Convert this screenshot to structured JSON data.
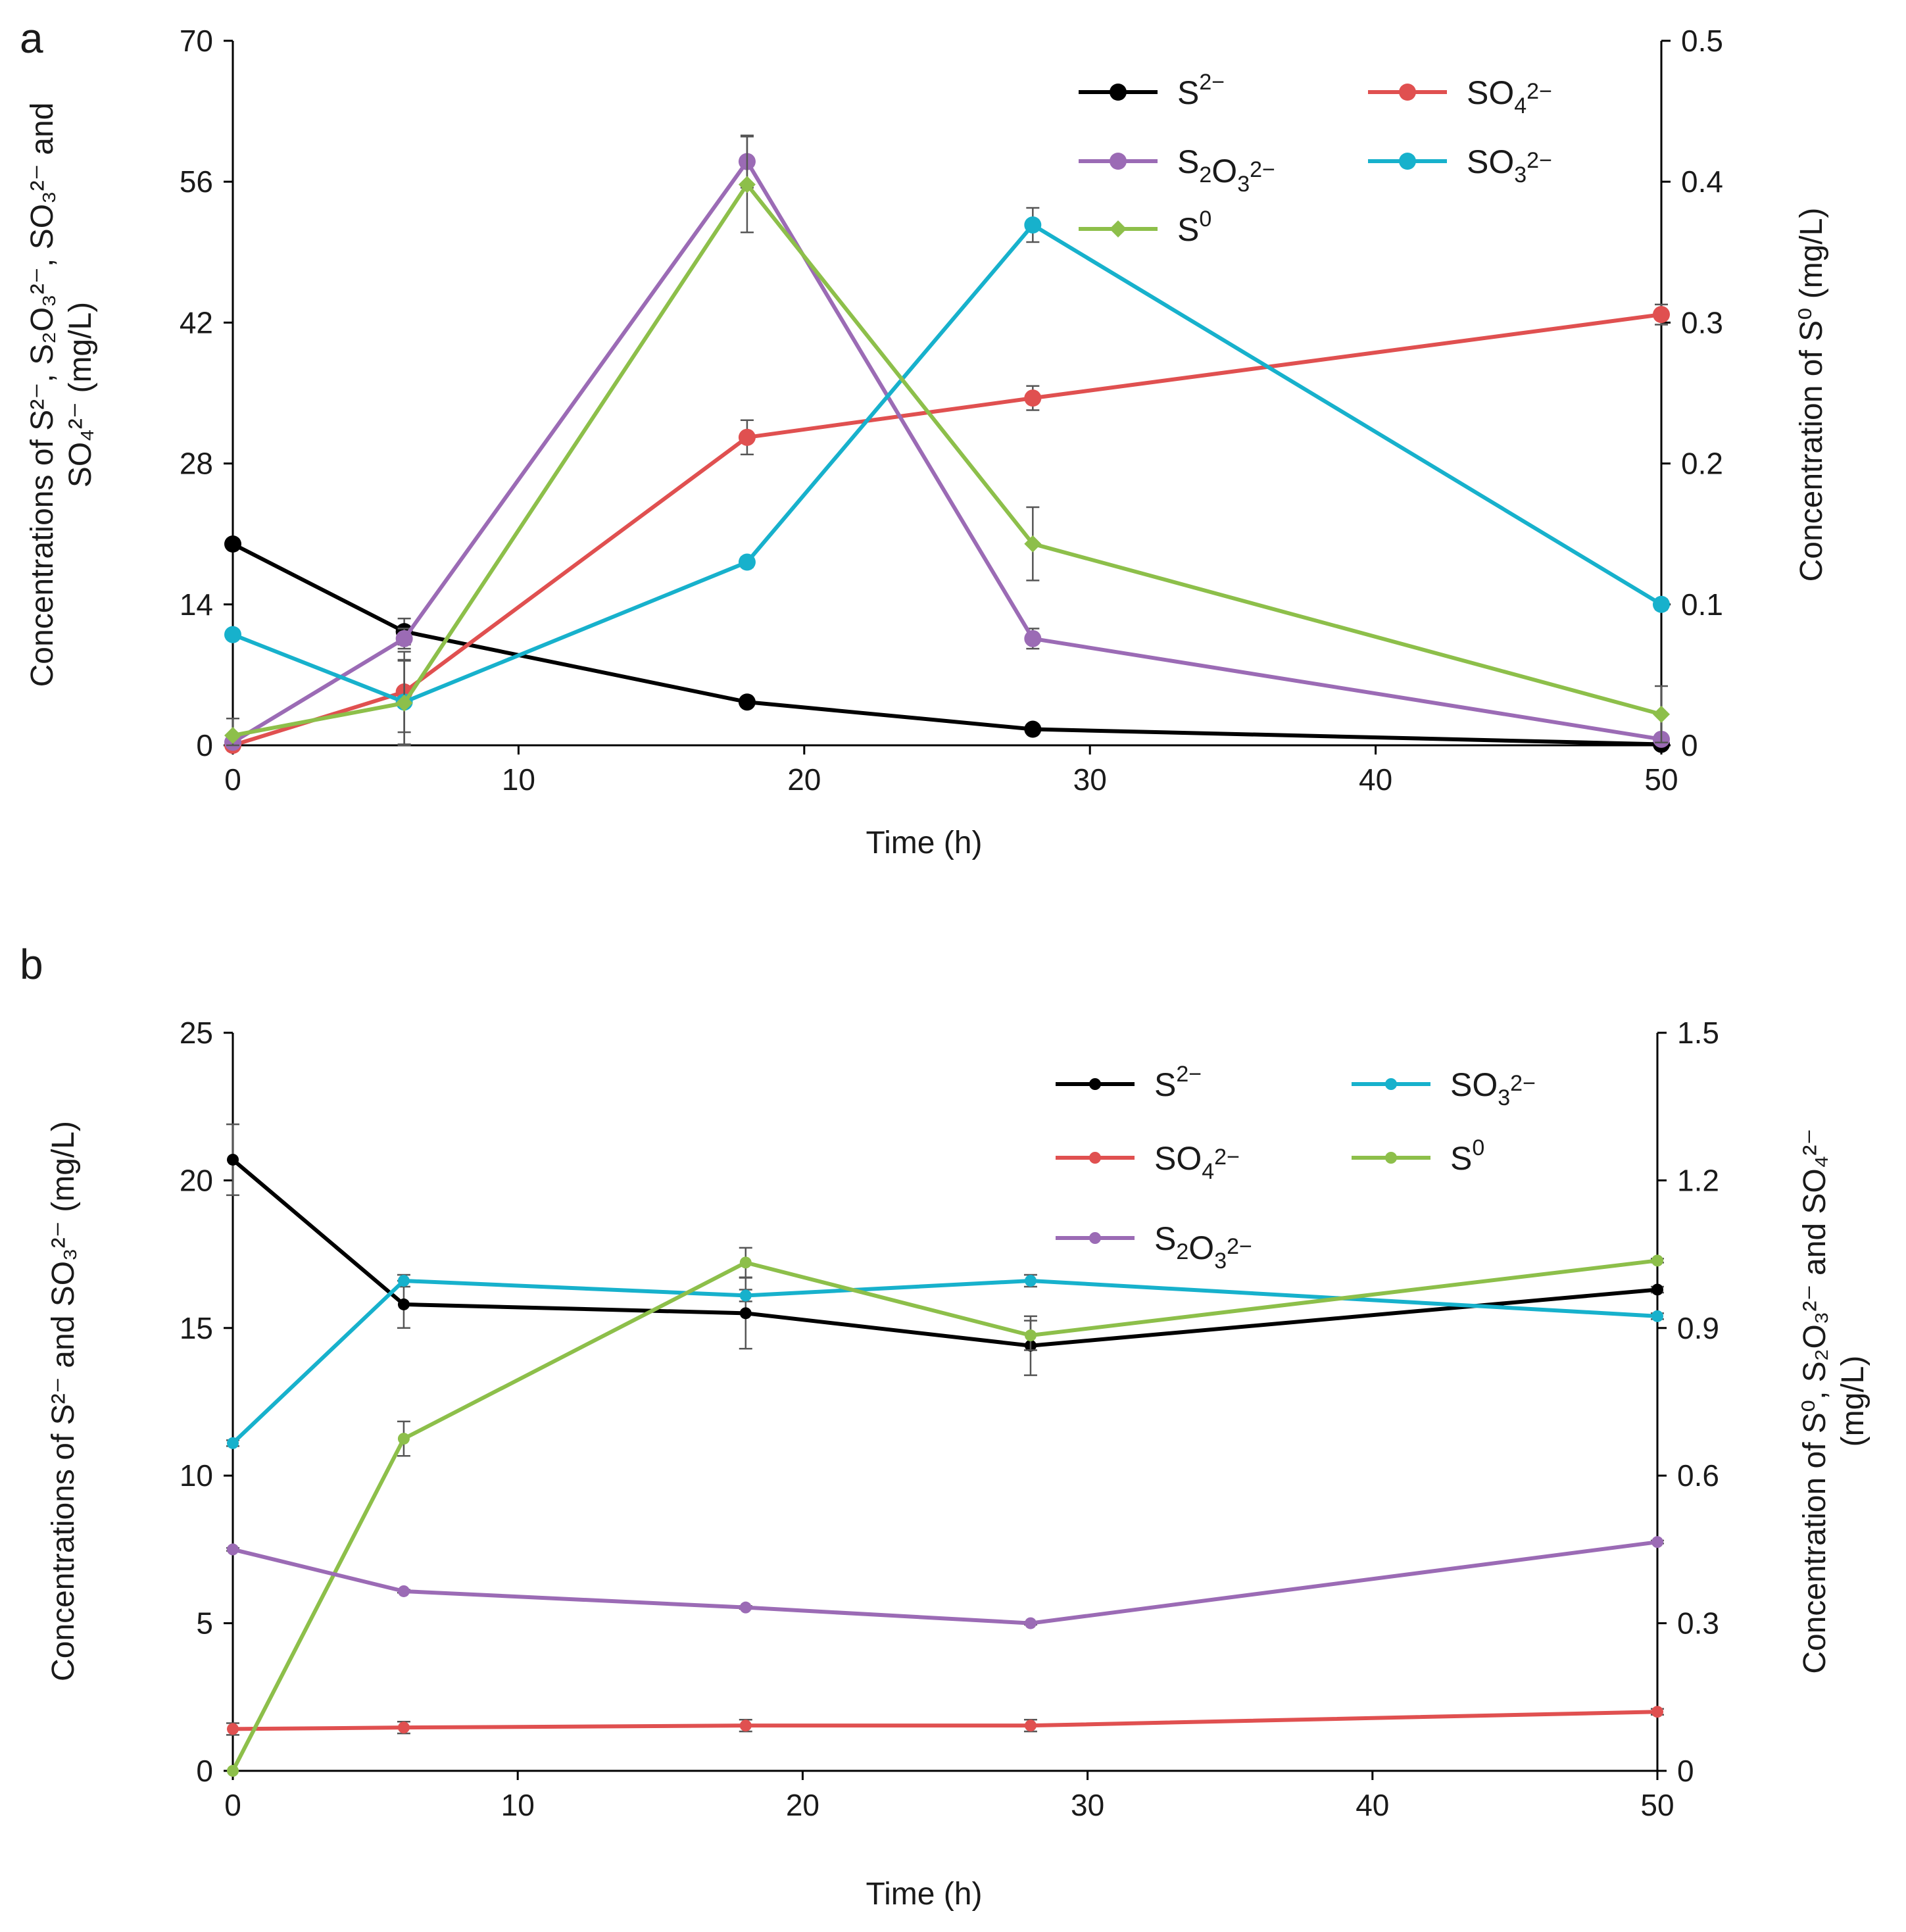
{
  "chart_data": [
    {
      "type": "line",
      "panel": "a",
      "xlabel": "Time (h)",
      "x": [
        0,
        6,
        18,
        28,
        50
      ],
      "xlim": [
        0,
        50
      ],
      "xticks": [
        "0",
        "10",
        "20",
        "30",
        "40",
        "50"
      ],
      "ylabel_left": [
        "Concentrations of S²⁻, S₂O₃²⁻, SO₃²⁻ and",
        "SO₄²⁻ (mg/L)"
      ],
      "ylabel_right": [
        "Concentration of S⁰ (mg/L)"
      ],
      "ylim_left": [
        0,
        70
      ],
      "yticks_left": [
        "0",
        "14",
        "28",
        "42",
        "56",
        "70"
      ],
      "ylim_right": [
        0,
        0.5
      ],
      "yticks_right": [
        "0",
        "0.1",
        "0.2",
        "0.3",
        "0.4",
        "0.5"
      ],
      "legend_position": "top-right",
      "series": [
        {
          "name": "S²⁻",
          "color": "#000000",
          "axis": "left",
          "marker": "circle",
          "values": [
            20.0,
            11.3,
            4.3,
            1.6,
            0.1
          ],
          "errors": [
            0.3,
            1.3,
            0.3,
            0.3,
            0.1
          ]
        },
        {
          "name": "SO₄²⁻",
          "color": "#e05050",
          "axis": "left",
          "marker": "circle",
          "values": [
            0.0,
            5.3,
            30.6,
            34.5,
            42.8
          ],
          "errors": [
            0.2,
            4.0,
            1.7,
            1.2,
            1.0
          ]
        },
        {
          "name": "S₂O₃²⁻",
          "color": "#9b6bb5",
          "axis": "left",
          "marker": "circle",
          "values": [
            0.3,
            10.6,
            58.0,
            10.6,
            0.6
          ],
          "errors": [
            0.2,
            1.0,
            2.6,
            1.0,
            0.3
          ]
        },
        {
          "name": "SO₃²⁻",
          "color": "#17b1cc",
          "axis": "left",
          "marker": "circle",
          "values": [
            11.0,
            4.3,
            18.2,
            51.7,
            14.0
          ],
          "errors": [
            0.3,
            4.2,
            0.5,
            1.7,
            0.5
          ]
        },
        {
          "name": "S⁰",
          "color": "#8dbf4a",
          "axis": "right",
          "marker": "diamond",
          "values": [
            0.007,
            0.03,
            0.398,
            0.143,
            0.022
          ],
          "errors": [
            0.012,
            0.03,
            0.034,
            0.026,
            0.02
          ]
        }
      ],
      "legend_order": [
        0,
        1,
        2,
        3,
        4
      ]
    },
    {
      "type": "line",
      "panel": "b",
      "xlabel": "Time (h)",
      "x": [
        0,
        6,
        18,
        28,
        50
      ],
      "xlim": [
        0,
        50
      ],
      "xticks": [
        "0",
        "10",
        "20",
        "30",
        "40",
        "50"
      ],
      "ylabel_left": [
        "Concentrations of S²⁻ and SO₃²⁻ (mg/L)"
      ],
      "ylabel_right": [
        "Concentration of S⁰, S₂O₃²⁻ and SO₄²⁻",
        "(mg/L)"
      ],
      "ylim_left": [
        0,
        25
      ],
      "yticks_left": [
        "0",
        "5",
        "10",
        "15",
        "20",
        "25"
      ],
      "ylim_right": [
        0,
        1.5
      ],
      "yticks_right": [
        "0",
        "0.3",
        "0.6",
        "0.9",
        "1.2",
        "1.5"
      ],
      "legend_position": "top-right",
      "series": [
        {
          "name": "S²⁻",
          "color": "#000000",
          "axis": "left",
          "marker": "circle",
          "values": [
            20.7,
            15.8,
            15.5,
            14.4,
            16.3
          ],
          "errors": [
            1.2,
            0.8,
            1.2,
            1.0,
            0.1
          ]
        },
        {
          "name": "SO₃²⁻",
          "color": "#17b1cc",
          "axis": "left",
          "marker": "circle",
          "values": [
            11.1,
            16.6,
            16.1,
            16.6,
            15.4
          ],
          "errors": [
            0.1,
            0.2,
            0.2,
            0.2,
            0.1
          ]
        },
        {
          "name": "SO₄²⁻",
          "color": "#e05050",
          "axis": "right",
          "marker": "circle",
          "values": [
            0.085,
            0.088,
            0.092,
            0.092,
            0.12
          ],
          "errors": [
            0.012,
            0.012,
            0.012,
            0.012,
            0.006
          ]
        },
        {
          "name": "S⁰",
          "color": "#8dbf4a",
          "axis": "right",
          "marker": "circle",
          "values": [
            0.0,
            0.675,
            1.033,
            0.885,
            1.037
          ],
          "errors": [
            0.0,
            0.035,
            0.03,
            0.03,
            0.004
          ]
        },
        {
          "name": "S₂O₃²⁻",
          "color": "#9b6bb5",
          "axis": "right",
          "marker": "circle",
          "values": [
            0.45,
            0.365,
            0.332,
            0.3,
            0.465
          ],
          "errors": [
            0.003,
            0.003,
            0.003,
            0.003,
            0.003
          ]
        }
      ],
      "legend_order": [
        0,
        1,
        2,
        3,
        4
      ]
    }
  ],
  "panels": [
    "a",
    "b"
  ]
}
